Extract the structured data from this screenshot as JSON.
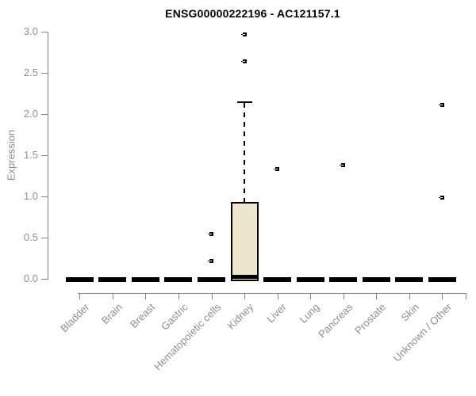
{
  "title": "ENSG00000222196 - AC121157.1",
  "y_axis": {
    "label": "Expression",
    "tick_labels": [
      "0.0",
      "0.5",
      "1.0",
      "1.5",
      "2.0",
      "2.5",
      "3.0"
    ],
    "min": 0,
    "max": 3
  },
  "chart_data": {
    "type": "box",
    "title": "ENSG00000222196 - AC121157.1",
    "xlabel": "",
    "ylabel": "Expression",
    "ylim": [
      0,
      3
    ],
    "yticks": [
      0,
      0.5,
      1,
      1.5,
      2,
      2.5,
      3
    ],
    "grid": false,
    "legend": "none",
    "categories": [
      "Bladder",
      "Brain",
      "Breast",
      "Gastric",
      "Hematopoietic cells",
      "Kidney",
      "Liver",
      "Lung",
      "Pancreas",
      "Prostate",
      "Skin",
      "Unknown / Other"
    ],
    "series": [
      {
        "category": "Bladder",
        "whisker_low": 0,
        "q1": 0,
        "median": 0,
        "q3": 0,
        "whisker_high": 0,
        "outliers": []
      },
      {
        "category": "Brain",
        "whisker_low": 0,
        "q1": 0,
        "median": 0,
        "q3": 0,
        "whisker_high": 0,
        "outliers": []
      },
      {
        "category": "Breast",
        "whisker_low": 0,
        "q1": 0,
        "median": 0,
        "q3": 0,
        "whisker_high": 0,
        "outliers": []
      },
      {
        "category": "Gastric",
        "whisker_low": 0,
        "q1": 0,
        "median": 0,
        "q3": 0,
        "whisker_high": 0,
        "outliers": []
      },
      {
        "category": "Hematopoietic cells",
        "whisker_low": 0,
        "q1": 0,
        "median": 0,
        "q3": 0,
        "whisker_high": 0,
        "outliers": [
          0.22,
          0.54
        ]
      },
      {
        "category": "Kidney",
        "whisker_low": 0,
        "q1": 0,
        "median": 0.01,
        "q3": 0.93,
        "whisker_high": 2.15,
        "outliers": [
          2.64,
          2.97
        ]
      },
      {
        "category": "Liver",
        "whisker_low": 0,
        "q1": 0,
        "median": 0,
        "q3": 0,
        "whisker_high": 0,
        "outliers": [
          1.33
        ]
      },
      {
        "category": "Lung",
        "whisker_low": 0,
        "q1": 0,
        "median": 0,
        "q3": 0,
        "whisker_high": 0,
        "outliers": []
      },
      {
        "category": "Pancreas",
        "whisker_low": 0,
        "q1": 0,
        "median": 0,
        "q3": 0,
        "whisker_high": 0,
        "outliers": [
          1.38
        ]
      },
      {
        "category": "Prostate",
        "whisker_low": 0,
        "q1": 0,
        "median": 0,
        "q3": 0,
        "whisker_high": 0,
        "outliers": []
      },
      {
        "category": "Skin",
        "whisker_low": 0,
        "q1": 0,
        "median": 0,
        "q3": 0,
        "whisker_high": 0,
        "outliers": []
      },
      {
        "category": "Unknown / Other",
        "whisker_low": 0,
        "q1": 0,
        "median": 0,
        "q3": 0,
        "whisker_high": 0,
        "outliers": [
          0.99,
          2.11
        ]
      }
    ],
    "colors": {
      "box_fill": "#ece7cd",
      "box_border": "#000000",
      "collapsed_box": "#000000",
      "outlier": "#000000",
      "axis": "#848484",
      "axis_text": "#8e8e8e",
      "title_text": "#000000",
      "background": "#ffffff"
    }
  }
}
